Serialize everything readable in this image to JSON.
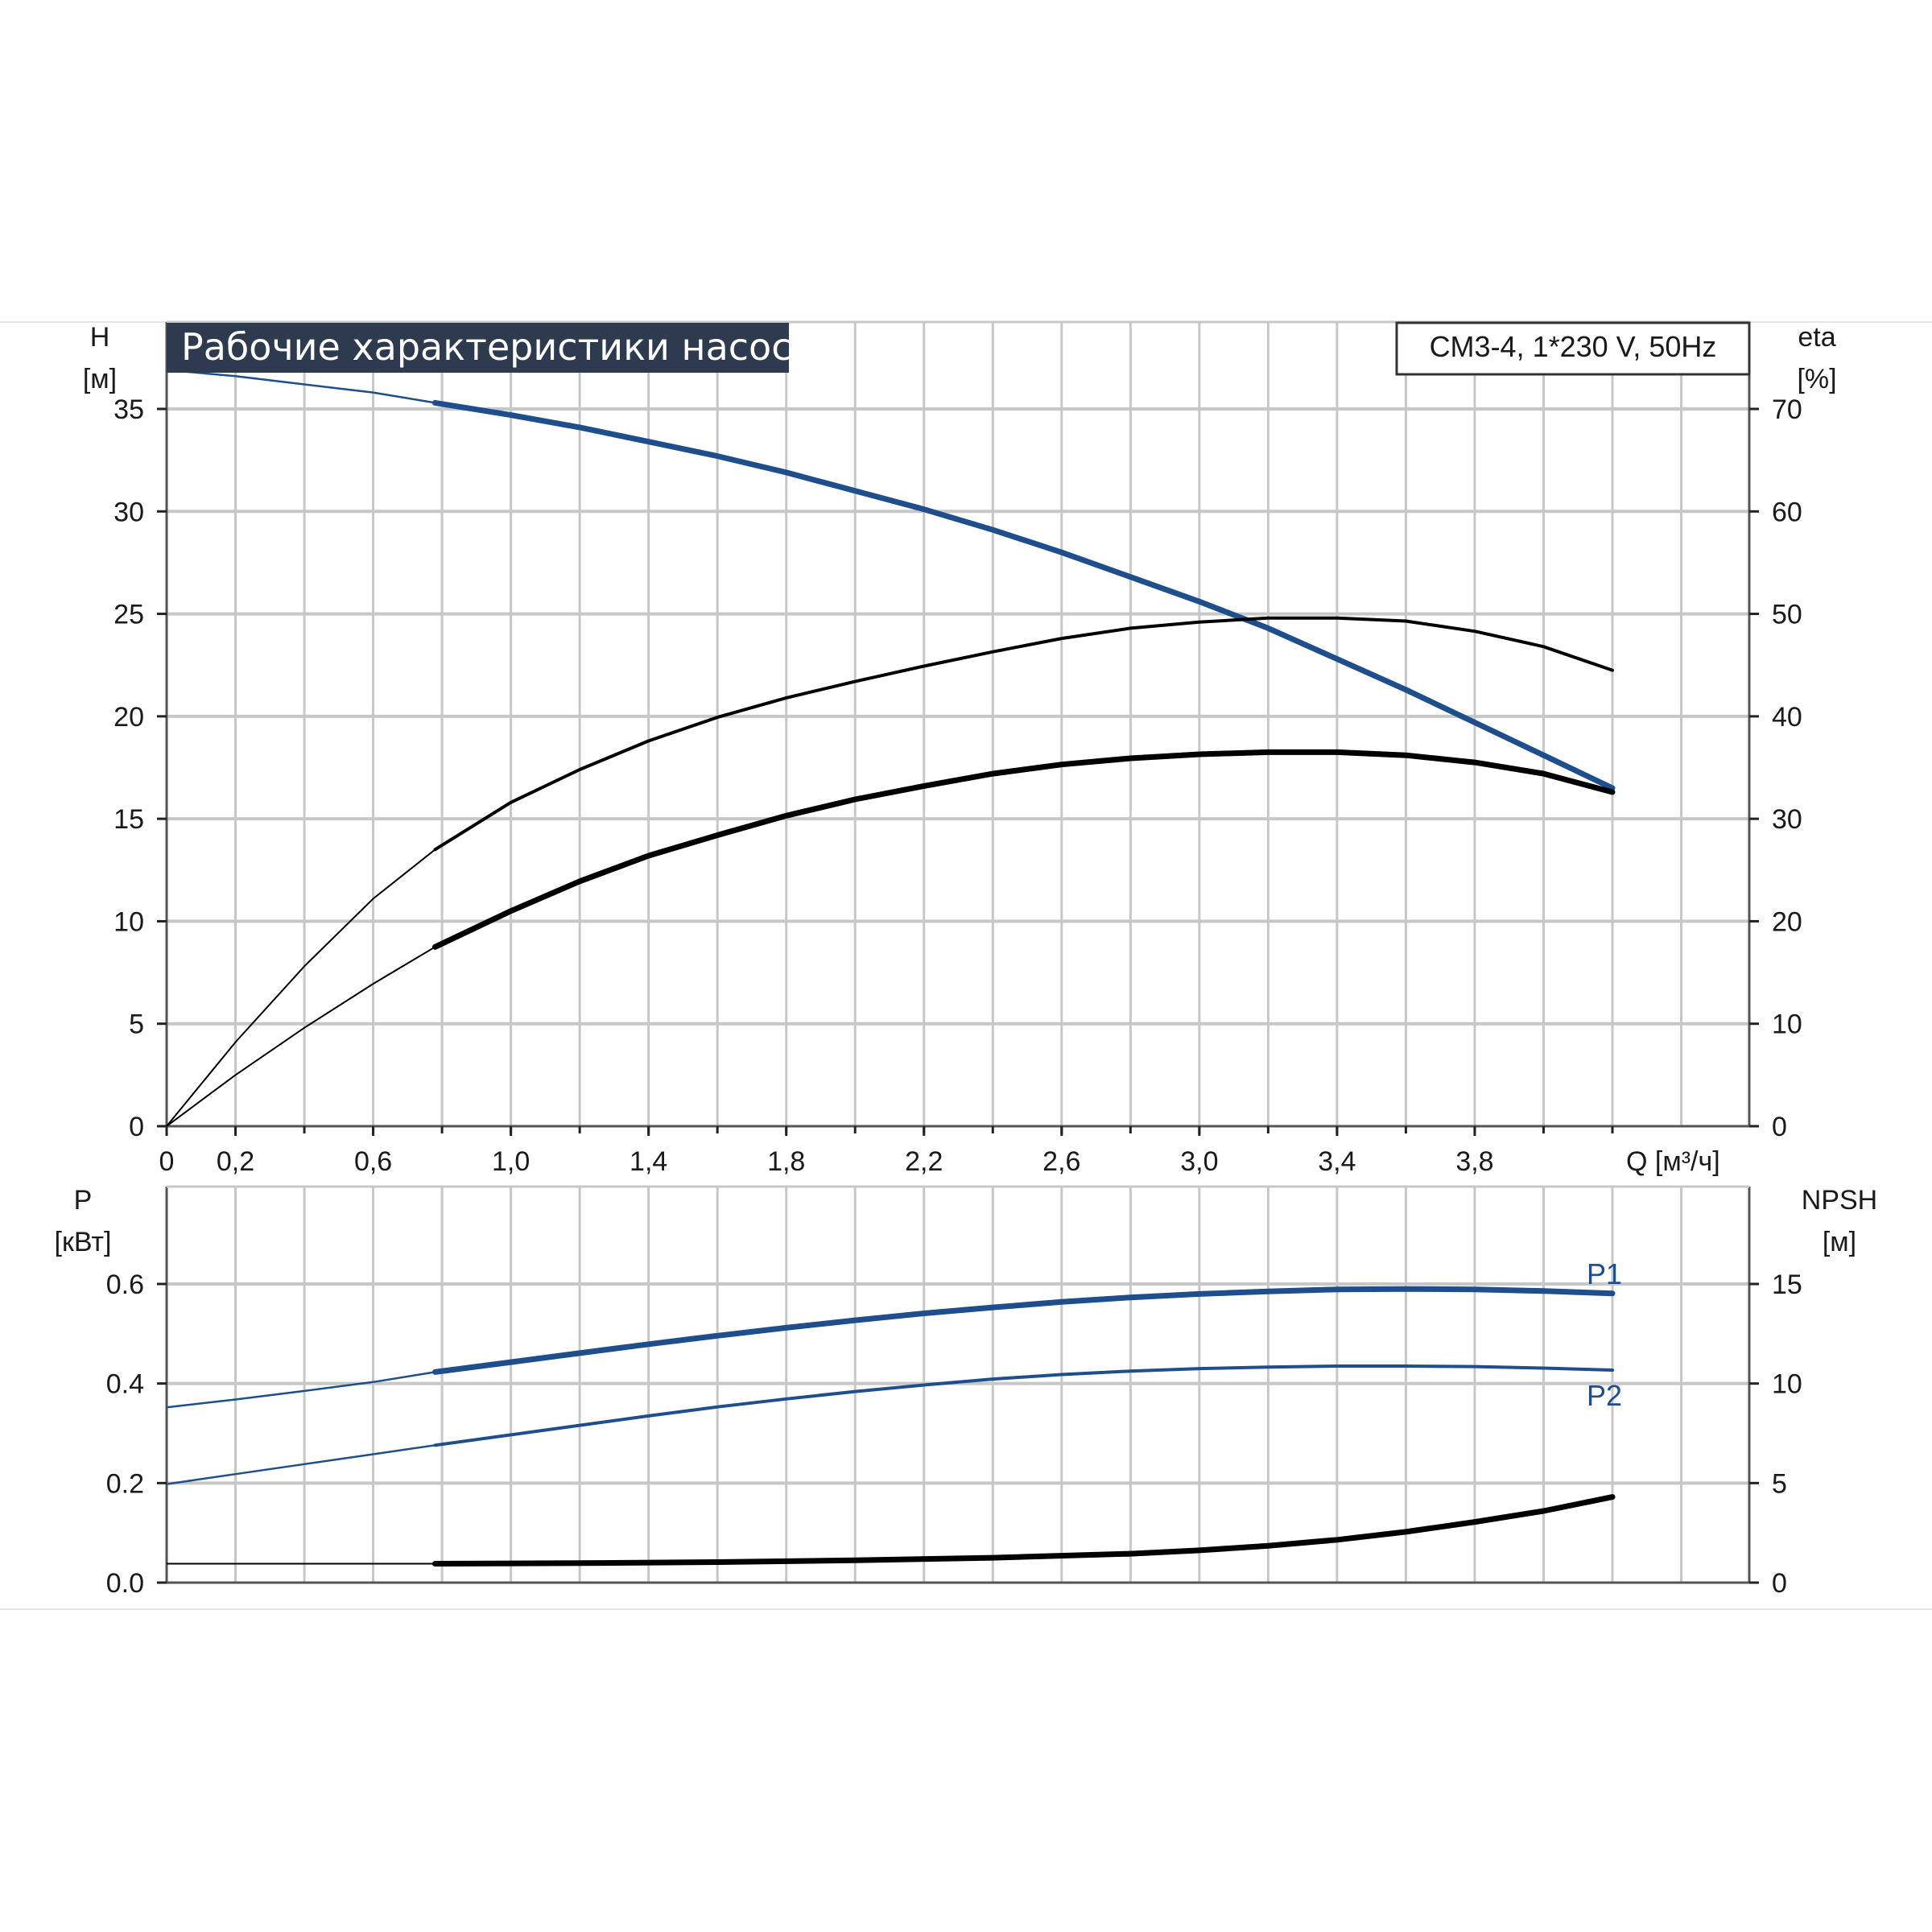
{
  "title": "Рабочие характеристики насоса",
  "model": "CM3-4, 1*230 V, 50Hz",
  "colors": {
    "blue": "#1f4e8c",
    "black": "#000000",
    "title_bg": "#2e3b4e",
    "grid": "#c7c7c7"
  },
  "chart_data": [
    {
      "id": "performance",
      "type": "line",
      "title": "Рабочие характеристики насоса",
      "xlabel": "Q [м³/ч]",
      "x_ticks": [
        "0",
        "0,2",
        "0,6",
        "1,0",
        "1,4",
        "1,8",
        "2,2",
        "2,6",
        "3,0",
        "3,4",
        "3,8"
      ],
      "xlim": [
        0,
        4.6
      ],
      "grid": true,
      "y_left": {
        "label": "H",
        "unit": "[м]",
        "ylim": [
          0,
          40
        ],
        "ticks": [
          "0",
          "5",
          "10",
          "15",
          "20",
          "25",
          "30",
          "35"
        ]
      },
      "y_right": {
        "label": "eta",
        "unit": "[%]",
        "ylim": [
          0,
          80
        ],
        "ticks": [
          "0",
          "10",
          "20",
          "30",
          "40",
          "50",
          "60",
          "70"
        ]
      },
      "series": [
        {
          "axis": "left",
          "color": "#1f4e8c",
          "x": [
            0,
            0.2,
            0.4,
            0.6,
            0.78,
            1.0,
            1.2,
            1.4,
            1.6,
            1.8,
            2.0,
            2.2,
            2.4,
            2.6,
            2.8,
            3.0,
            3.2,
            3.4,
            3.6,
            3.8,
            4.0,
            4.2
          ],
          "y": [
            36.9,
            36.6,
            36.2,
            35.8,
            35.3,
            34.7,
            34.1,
            33.4,
            32.7,
            31.9,
            31.0,
            30.1,
            29.1,
            28.0,
            26.8,
            25.6,
            24.3,
            22.8,
            21.3,
            19.7,
            18.1,
            16.5
          ]
        },
        {
          "axis": "right",
          "color": "#000000",
          "x": [
            0,
            0.2,
            0.4,
            0.6,
            0.78,
            1.0,
            1.2,
            1.4,
            1.6,
            1.8,
            2.0,
            2.2,
            2.4,
            2.6,
            2.8,
            3.0,
            3.2,
            3.4,
            3.6,
            3.8,
            4.0,
            4.2
          ],
          "y": [
            0,
            8.2,
            15.6,
            22.2,
            27.0,
            31.6,
            34.8,
            37.6,
            39.9,
            41.8,
            43.4,
            44.9,
            46.3,
            47.6,
            48.6,
            49.2,
            49.6,
            49.6,
            49.3,
            48.3,
            46.8,
            44.5
          ]
        },
        {
          "axis": "right",
          "color": "#000000",
          "x": [
            0,
            0.2,
            0.4,
            0.6,
            0.78,
            1.0,
            1.2,
            1.4,
            1.6,
            1.8,
            2.0,
            2.2,
            2.4,
            2.6,
            2.8,
            3.0,
            3.2,
            3.4,
            3.6,
            3.8,
            4.0,
            4.2
          ],
          "y": [
            0,
            5.0,
            9.6,
            13.9,
            17.5,
            21.0,
            23.9,
            26.4,
            28.4,
            30.3,
            31.9,
            33.2,
            34.4,
            35.3,
            35.9,
            36.3,
            36.5,
            36.5,
            36.2,
            35.5,
            34.4,
            32.6
          ]
        }
      ]
    },
    {
      "id": "power_npsh",
      "type": "line",
      "xlim": [
        0,
        4.6
      ],
      "grid": true,
      "y_left": {
        "label": "P",
        "unit": "[кВт]",
        "ylim": [
          0,
          0.8
        ],
        "ticks": [
          "0.0",
          "0.2",
          "0.4",
          "0.6"
        ]
      },
      "y_right": {
        "label": "NPSH",
        "unit": "[м]",
        "ylim": [
          0,
          20
        ],
        "ticks": [
          "0",
          "5",
          "10",
          "15"
        ]
      },
      "series": [
        {
          "name": "P1",
          "axis": "left",
          "color": "#1f4e8c",
          "x": [
            0,
            0.2,
            0.4,
            0.6,
            0.78,
            1.0,
            1.2,
            1.4,
            1.6,
            1.8,
            2.0,
            2.2,
            2.4,
            2.6,
            2.8,
            3.0,
            3.2,
            3.4,
            3.6,
            3.8,
            4.0,
            4.2
          ],
          "y": [
            0.352,
            0.368,
            0.385,
            0.403,
            0.423,
            0.443,
            0.461,
            0.479,
            0.496,
            0.512,
            0.527,
            0.541,
            0.553,
            0.564,
            0.573,
            0.58,
            0.585,
            0.589,
            0.59,
            0.589,
            0.586,
            0.581
          ]
        },
        {
          "name": "P2",
          "axis": "left",
          "color": "#1f4e8c",
          "x": [
            0,
            0.2,
            0.4,
            0.6,
            0.78,
            1.0,
            1.2,
            1.4,
            1.6,
            1.8,
            2.0,
            2.2,
            2.4,
            2.6,
            2.8,
            3.0,
            3.2,
            3.4,
            3.6,
            3.8,
            4.0,
            4.2
          ],
          "y": [
            0.198,
            0.218,
            0.238,
            0.258,
            0.276,
            0.297,
            0.316,
            0.335,
            0.353,
            0.369,
            0.384,
            0.397,
            0.409,
            0.418,
            0.425,
            0.43,
            0.433,
            0.435,
            0.435,
            0.434,
            0.431,
            0.427
          ]
        },
        {
          "axis": "right",
          "color": "#000000",
          "x": [
            0,
            0.78,
            1.2,
            1.6,
            2.0,
            2.4,
            2.8,
            3.0,
            3.2,
            3.4,
            3.6,
            3.8,
            4.0,
            4.2
          ],
          "y": [
            0.95,
            0.95,
            0.98,
            1.03,
            1.12,
            1.25,
            1.45,
            1.62,
            1.85,
            2.15,
            2.55,
            3.05,
            3.6,
            4.3
          ]
        }
      ]
    }
  ]
}
